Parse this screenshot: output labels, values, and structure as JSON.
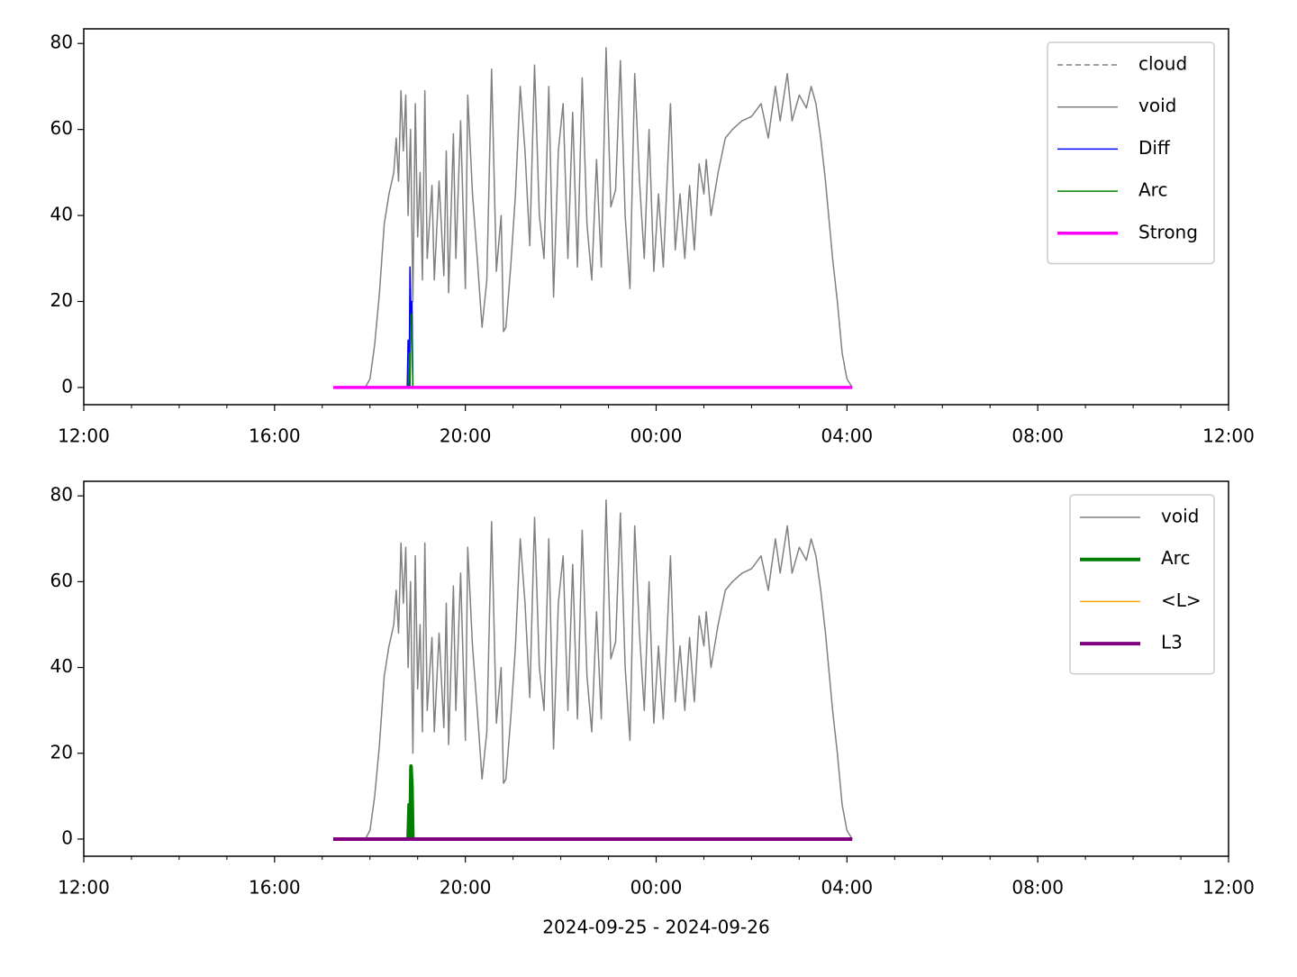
{
  "chart_data": [
    {
      "type": "line",
      "xlim": [
        0,
        24
      ],
      "ylim": [
        -4,
        83.4
      ],
      "xticks": [
        {
          "value": 0,
          "label": "12:00"
        },
        {
          "value": 4,
          "label": "16:00"
        },
        {
          "value": 8,
          "label": "20:00"
        },
        {
          "value": 12,
          "label": "00:00"
        },
        {
          "value": 16,
          "label": "04:00"
        },
        {
          "value": 20,
          "label": "08:00"
        },
        {
          "value": 24,
          "label": "12:00"
        }
      ],
      "xminorticks": [
        1,
        2,
        3,
        5,
        6,
        7,
        9,
        10,
        11,
        13,
        14,
        15,
        17,
        18,
        19,
        21,
        22,
        23
      ],
      "yticks": [
        0,
        20,
        40,
        60,
        80
      ],
      "legend": "upper right",
      "series": [
        {
          "name": "cloud",
          "color": "#808080",
          "dash": "6,4",
          "width": 1.5,
          "x": [],
          "values": []
        },
        {
          "name": "void",
          "color": "#808080",
          "width": 1.5,
          "x": [
            5.23,
            5.9,
            6.0,
            6.1,
            6.2,
            6.3,
            6.4,
            6.5,
            6.55,
            6.6,
            6.65,
            6.7,
            6.75,
            6.8,
            6.85,
            6.9,
            6.95,
            7.0,
            7.05,
            7.1,
            7.15,
            7.2,
            7.3,
            7.35,
            7.45,
            7.55,
            7.6,
            7.65,
            7.75,
            7.8,
            7.9,
            8.0,
            8.05,
            8.15,
            8.25,
            8.35,
            8.45,
            8.55,
            8.65,
            8.75,
            8.8,
            8.85,
            8.95,
            9.05,
            9.15,
            9.25,
            9.35,
            9.45,
            9.55,
            9.65,
            9.75,
            9.85,
            9.95,
            10.05,
            10.15,
            10.25,
            10.35,
            10.45,
            10.55,
            10.65,
            10.75,
            10.85,
            10.95,
            11.05,
            11.15,
            11.25,
            11.35,
            11.45,
            11.55,
            11.65,
            11.75,
            11.85,
            11.95,
            12.05,
            12.15,
            12.3,
            12.4,
            12.5,
            12.6,
            12.7,
            12.8,
            12.9,
            13.0,
            13.05,
            13.15,
            13.3,
            13.45,
            13.6,
            13.8,
            14.0,
            14.2,
            14.35,
            14.5,
            14.6,
            14.75,
            14.85,
            15.0,
            15.15,
            15.25,
            15.35,
            15.45,
            15.55,
            15.7,
            15.8,
            15.9,
            16.0,
            16.11
          ],
          "values": [
            0,
            0,
            2,
            10,
            22,
            38,
            45,
            50,
            58,
            48,
            69,
            55,
            68,
            40,
            60,
            20,
            66,
            35,
            50,
            25,
            69,
            30,
            47,
            25,
            48,
            26,
            55,
            22,
            59,
            30,
            62,
            23,
            68,
            45,
            30,
            14,
            25,
            74,
            27,
            40,
            13,
            14,
            28,
            45,
            70,
            55,
            33,
            75,
            40,
            30,
            70,
            21,
            55,
            66,
            30,
            64,
            28,
            72,
            38,
            25,
            53,
            28,
            79,
            42,
            46,
            76,
            40,
            23,
            73,
            48,
            30,
            60,
            27,
            45,
            28,
            66,
            32,
            45,
            30,
            47,
            32,
            52,
            45,
            53,
            40,
            50,
            58,
            60,
            62,
            63,
            66,
            58,
            70,
            62,
            73,
            62,
            68,
            65,
            70,
            66,
            58,
            48,
            30,
            20,
            8,
            2,
            0
          ]
        },
        {
          "name": "Diff",
          "color": "#0000ff",
          "width": 1.5,
          "x": [
            6.78,
            6.8,
            6.82,
            6.84,
            6.86,
            6.88,
            6.9
          ],
          "values": [
            0,
            11,
            0,
            28,
            17,
            20,
            0
          ]
        },
        {
          "name": "Arc",
          "color": "#008000",
          "width": 1.5,
          "x": [
            6.8,
            6.82,
            6.84,
            6.86,
            6.88,
            6.9
          ],
          "values": [
            0,
            8,
            0,
            17,
            12,
            0
          ]
        },
        {
          "name": "Strong",
          "color": "#ff00ff",
          "width": 3.5,
          "x": [
            5.23,
            16.11
          ],
          "values": [
            0,
            0
          ]
        }
      ]
    },
    {
      "type": "line",
      "xlim": [
        0,
        24
      ],
      "ylim": [
        -4,
        83.4
      ],
      "xlabel": "2024-09-25 - 2024-09-26",
      "xticks": [
        {
          "value": 0,
          "label": "12:00"
        },
        {
          "value": 4,
          "label": "16:00"
        },
        {
          "value": 8,
          "label": "20:00"
        },
        {
          "value": 12,
          "label": "00:00"
        },
        {
          "value": 16,
          "label": "04:00"
        },
        {
          "value": 20,
          "label": "08:00"
        },
        {
          "value": 24,
          "label": "12:00"
        }
      ],
      "xminorticks": [
        1,
        2,
        3,
        5,
        6,
        7,
        9,
        10,
        11,
        13,
        14,
        15,
        17,
        18,
        19,
        21,
        22,
        23
      ],
      "yticks": [
        0,
        20,
        40,
        60,
        80
      ],
      "legend": "upper right",
      "series": [
        {
          "name": "void",
          "color": "#808080",
          "width": 1.5,
          "x": [
            5.23,
            5.9,
            6.0,
            6.1,
            6.2,
            6.3,
            6.4,
            6.5,
            6.55,
            6.6,
            6.65,
            6.7,
            6.75,
            6.8,
            6.85,
            6.9,
            6.95,
            7.0,
            7.05,
            7.1,
            7.15,
            7.2,
            7.3,
            7.35,
            7.45,
            7.55,
            7.6,
            7.65,
            7.75,
            7.8,
            7.9,
            8.0,
            8.05,
            8.15,
            8.25,
            8.35,
            8.45,
            8.55,
            8.65,
            8.75,
            8.8,
            8.85,
            8.95,
            9.05,
            9.15,
            9.25,
            9.35,
            9.45,
            9.55,
            9.65,
            9.75,
            9.85,
            9.95,
            10.05,
            10.15,
            10.25,
            10.35,
            10.45,
            10.55,
            10.65,
            10.75,
            10.85,
            10.95,
            11.05,
            11.15,
            11.25,
            11.35,
            11.45,
            11.55,
            11.65,
            11.75,
            11.85,
            11.95,
            12.05,
            12.15,
            12.3,
            12.4,
            12.5,
            12.6,
            12.7,
            12.8,
            12.9,
            13.0,
            13.05,
            13.15,
            13.3,
            13.45,
            13.6,
            13.8,
            14.0,
            14.2,
            14.35,
            14.5,
            14.6,
            14.75,
            14.85,
            15.0,
            15.15,
            15.25,
            15.35,
            15.45,
            15.55,
            15.7,
            15.8,
            15.9,
            16.0,
            16.11
          ],
          "values": [
            0,
            0,
            2,
            10,
            22,
            38,
            45,
            50,
            58,
            48,
            69,
            55,
            68,
            40,
            60,
            20,
            66,
            35,
            50,
            25,
            69,
            30,
            47,
            25,
            48,
            26,
            55,
            22,
            59,
            30,
            62,
            23,
            68,
            45,
            30,
            14,
            25,
            74,
            27,
            40,
            13,
            14,
            28,
            45,
            70,
            55,
            33,
            75,
            40,
            30,
            70,
            21,
            55,
            66,
            30,
            64,
            28,
            72,
            38,
            25,
            53,
            28,
            79,
            42,
            46,
            76,
            40,
            23,
            73,
            48,
            30,
            60,
            27,
            45,
            28,
            66,
            32,
            45,
            30,
            47,
            32,
            52,
            45,
            53,
            40,
            50,
            58,
            60,
            62,
            63,
            66,
            58,
            70,
            62,
            73,
            62,
            68,
            65,
            70,
            66,
            58,
            48,
            30,
            20,
            8,
            2,
            0
          ]
        },
        {
          "name": "Arc",
          "color": "#008000",
          "width": 4,
          "x": [
            6.8,
            6.82,
            6.84,
            6.86,
            6.88,
            6.9
          ],
          "values": [
            0,
            8,
            0,
            17,
            12,
            0
          ]
        },
        {
          "name": "<L>",
          "color": "#ffa500",
          "width": 1.5,
          "x": [
            5.23,
            16.11
          ],
          "values": [
            0,
            0
          ]
        },
        {
          "name": "L3",
          "color": "#800080",
          "width": 4,
          "x": [
            5.23,
            16.11
          ],
          "values": [
            0,
            0
          ]
        }
      ]
    }
  ]
}
